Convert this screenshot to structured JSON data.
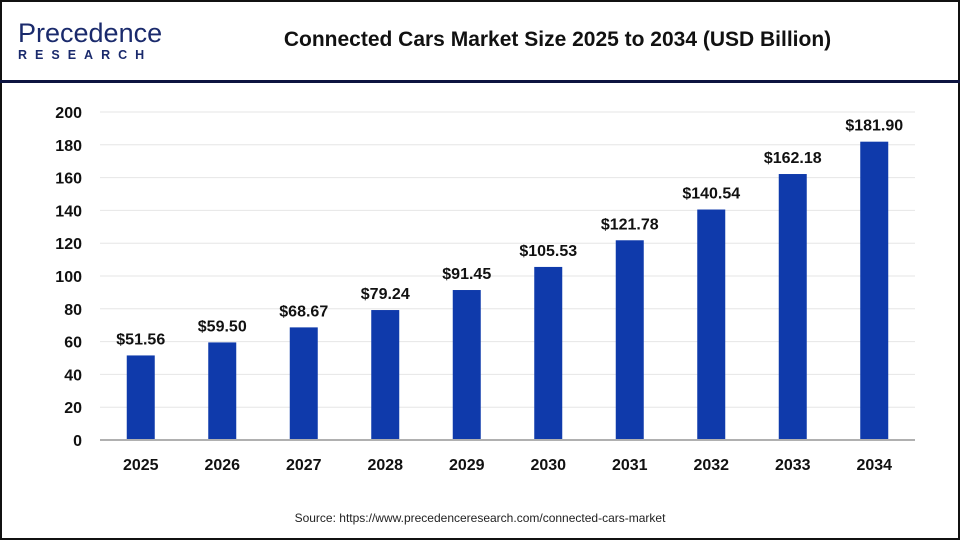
{
  "header": {
    "logo_text": "Precedence",
    "logo_subtext": "RESEARCH",
    "title": "Connected Cars Market Size 2025 to 2034 (USD Billion)"
  },
  "source": "Source: https://www.precedenceresearch.com/connected-cars-market",
  "colors": {
    "bar": "#0f3aab",
    "grid": "#e6e6e6",
    "axis": "#b0b0b0",
    "header_rule": "#0d1440"
  },
  "chart_data": {
    "type": "bar",
    "title": "Connected Cars Market Size 2025 to 2034 (USD Billion)",
    "categories": [
      "2025",
      "2026",
      "2027",
      "2028",
      "2029",
      "2030",
      "2031",
      "2032",
      "2033",
      "2034"
    ],
    "values": [
      51.56,
      59.5,
      68.67,
      79.24,
      91.45,
      105.53,
      121.78,
      140.54,
      162.18,
      181.9
    ],
    "data_labels": [
      "$51.56",
      "$59.50",
      "$68.67",
      "$79.24",
      "$91.45",
      "$105.53",
      "$121.78",
      "$140.54",
      "$162.18",
      "$181.90"
    ],
    "yticks": [
      "0",
      "20",
      "40",
      "60",
      "80",
      "100",
      "120",
      "140",
      "160",
      "180",
      "200"
    ],
    "ylim": [
      0,
      200
    ],
    "grid": true,
    "xlabel": "",
    "ylabel": ""
  }
}
